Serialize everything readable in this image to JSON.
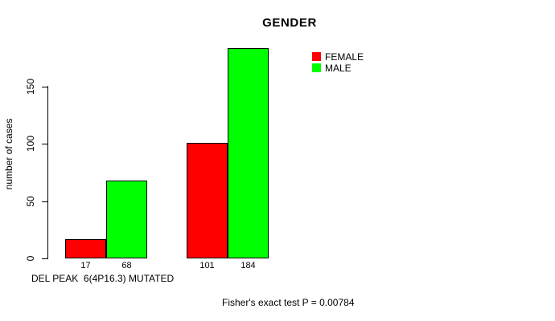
{
  "page": {
    "background": "#ffffff"
  },
  "chart_data": {
    "type": "bar",
    "title": "GENDER",
    "xlabel": "DEL PEAK  6(4P16.3) MUTATED",
    "ylabel": "number of cases",
    "categories": [
      "",
      ""
    ],
    "series": [
      {
        "name": "FEMALE",
        "color": "#FF0000",
        "values": [
          17,
          101
        ]
      },
      {
        "name": "MALE",
        "color": "#00FF00",
        "values": [
          68,
          184
        ]
      }
    ],
    "bar_labels": [
      [
        "17",
        "68"
      ],
      [
        "101",
        "184"
      ]
    ],
    "yticks": [
      "0",
      "50",
      "100",
      "150"
    ],
    "ylim": [
      0,
      185
    ],
    "grid": false,
    "legend_position": "top-right",
    "annotation": "Fisher's exact test P = 0.00784",
    "colors": {
      "axis": "#000000",
      "text": "#000000",
      "background": "#ffffff"
    }
  }
}
